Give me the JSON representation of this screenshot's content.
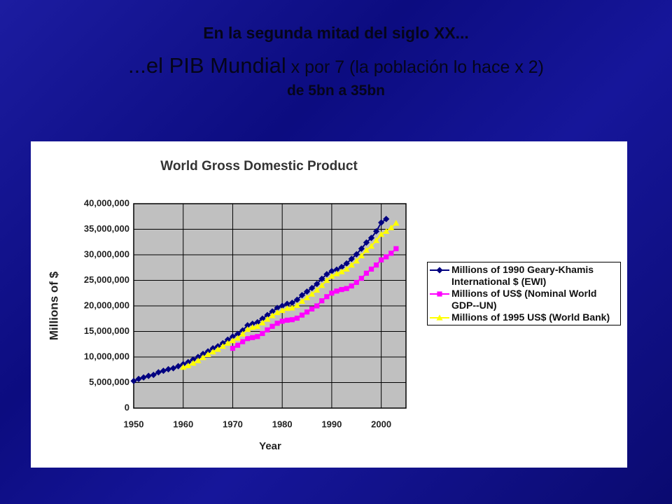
{
  "slide": {
    "title_line1": "En la segunda mitad del siglo XX...",
    "title_line2_big": "...el PIB Mundial",
    "title_line2_small": "x por 7 (la población lo hace x 2)",
    "title_line3": "de 5bn a 35bn"
  },
  "chart_data": {
    "type": "line",
    "title": "World Gross Domestic Product",
    "x_label": "Year",
    "y_label": "Millions of $",
    "xlim": [
      1950,
      2005
    ],
    "xticks": [
      1950,
      1960,
      1970,
      1980,
      1990,
      2000
    ],
    "ylim": [
      0,
      40000000
    ],
    "yticks": [
      0,
      {
        "value": 5000000,
        "label": "5,000,000"
      },
      {
        "value": 10000000,
        "label": "10,000,000"
      },
      {
        "value": 15000000,
        "label": "15,000,000"
      },
      {
        "value": 20000000,
        "label": "20,000,000"
      },
      {
        "value": 25000000,
        "label": "25,000,000"
      },
      {
        "value": 30000000,
        "label": "30,000,000"
      },
      {
        "value": 35000000,
        "label": "35,000,000"
      },
      {
        "value": 40000000,
        "label": "40,000,000"
      }
    ],
    "grid": true,
    "legend": "right",
    "series": [
      {
        "name": "Millions of 1990 Geary-Khamis International $ (EWI)",
        "color": "#000080",
        "marker": "diamond",
        "x": [
          1950,
          1951,
          1952,
          1953,
          1954,
          1955,
          1956,
          1957,
          1958,
          1959,
          1960,
          1961,
          1962,
          1963,
          1964,
          1965,
          1966,
          1967,
          1968,
          1969,
          1970,
          1971,
          1972,
          1973,
          1974,
          1975,
          1976,
          1977,
          1978,
          1979,
          1980,
          1981,
          1982,
          1983,
          1984,
          1985,
          1986,
          1987,
          1988,
          1989,
          1990,
          1991,
          1992,
          1993,
          1994,
          1995,
          1996,
          1997,
          1998,
          1999,
          2000,
          2001
        ],
        "values": [
          5300000,
          5700000,
          6000000,
          6300000,
          6500000,
          7000000,
          7300000,
          7600000,
          7800000,
          8200000,
          8600000,
          9000000,
          9500000,
          10000000,
          10600000,
          11100000,
          11700000,
          12100000,
          12700000,
          13400000,
          14000000,
          14500000,
          15200000,
          16200000,
          16500000,
          16800000,
          17500000,
          18200000,
          18900000,
          19600000,
          20000000,
          20400000,
          20600000,
          21200000,
          22100000,
          22800000,
          23500000,
          24300000,
          25300000,
          26200000,
          26800000,
          27100000,
          27600000,
          28300000,
          29200000,
          30100000,
          31200000,
          32400000,
          33300000,
          34600000,
          36300000,
          37000000
        ]
      },
      {
        "name": "Millions of US$ (Nominal World GDP--UN)",
        "color": "#ff00ff",
        "marker": "square",
        "x": [
          1970,
          1971,
          1972,
          1973,
          1974,
          1975,
          1976,
          1977,
          1978,
          1979,
          1980,
          1981,
          1982,
          1983,
          1984,
          1985,
          1986,
          1987,
          1988,
          1989,
          1990,
          1991,
          1992,
          1993,
          1994,
          1995,
          1996,
          1997,
          1998,
          1999,
          2000,
          2001,
          2002,
          2003
        ],
        "values": [
          11700000,
          12300000,
          13000000,
          13600000,
          13800000,
          14000000,
          14600000,
          15300000,
          16000000,
          16600000,
          17000000,
          17200000,
          17300000,
          17600000,
          18200000,
          18800000,
          19400000,
          20000000,
          21000000,
          21800000,
          22500000,
          22900000,
          23200000,
          23400000,
          23900000,
          24600000,
          25400000,
          26400000,
          27200000,
          28000000,
          29000000,
          29600000,
          30300000,
          31200000
        ]
      },
      {
        "name": "Millions of 1995 US$ (World Bank)",
        "color": "#ffff00",
        "marker": "triangle",
        "x": [
          1960,
          1961,
          1962,
          1963,
          1964,
          1965,
          1966,
          1967,
          1968,
          1969,
          1970,
          1971,
          1972,
          1973,
          1974,
          1975,
          1976,
          1977,
          1978,
          1979,
          1980,
          1981,
          1982,
          1983,
          1984,
          1985,
          1986,
          1987,
          1988,
          1989,
          1990,
          1991,
          1992,
          1993,
          1994,
          1995,
          1996,
          1997,
          1998,
          1999,
          2000,
          2001,
          2002,
          2003
        ],
        "values": [
          8000000,
          8300000,
          8800000,
          9300000,
          9900000,
          10500000,
          11000000,
          11500000,
          12100000,
          12700000,
          13200000,
          13700000,
          14500000,
          15400000,
          15800000,
          16000000,
          16700000,
          17400000,
          18100000,
          18700000,
          19100000,
          19500000,
          19600000,
          20100000,
          20900000,
          21600000,
          22300000,
          23100000,
          24000000,
          25000000,
          25800000,
          26300000,
          26700000,
          27200000,
          28000000,
          28800000,
          29800000,
          30900000,
          31700000,
          32800000,
          34000000,
          34600000,
          35300000,
          36200000
        ]
      }
    ]
  }
}
